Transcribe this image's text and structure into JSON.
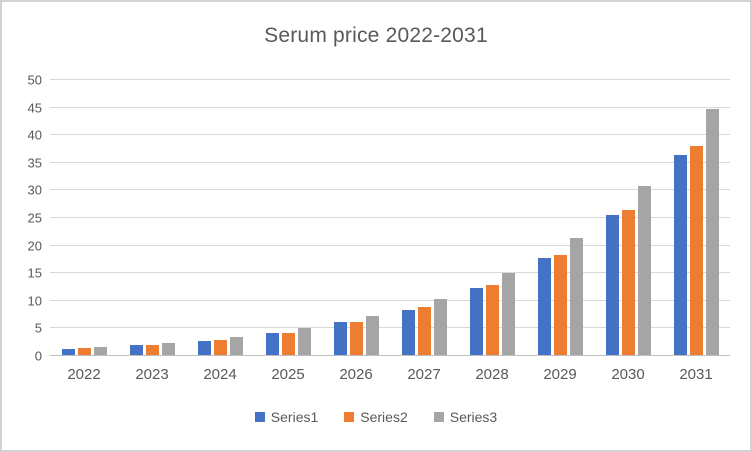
{
  "chart_data": {
    "type": "bar",
    "title": "Serum price 2022-2031",
    "categories": [
      "2022",
      "2023",
      "2024",
      "2025",
      "2026",
      "2027",
      "2028",
      "2029",
      "2030",
      "2031"
    ],
    "series": [
      {
        "name": "Series1",
        "color": "#4472C4",
        "values": [
          1.2,
          2.0,
          2.8,
          4.1,
          6.1,
          8.4,
          12.4,
          17.7,
          25.5,
          36.5
        ]
      },
      {
        "name": "Series2",
        "color": "#ED7D31",
        "values": [
          1.4,
          2.0,
          2.9,
          4.2,
          6.2,
          8.8,
          12.8,
          18.3,
          26.5,
          38.0
        ]
      },
      {
        "name": "Series3",
        "color": "#A5A5A5",
        "values": [
          1.6,
          2.4,
          3.4,
          5.0,
          7.3,
          10.4,
          15.0,
          21.3,
          30.8,
          44.7
        ]
      }
    ],
    "xlabel": "",
    "ylabel": "",
    "ylim": [
      0,
      50
    ],
    "yticks": [
      0,
      5,
      10,
      15,
      20,
      25,
      30,
      35,
      40,
      45,
      50
    ],
    "grid": "horizontal",
    "legend_position": "bottom"
  },
  "theme": {
    "text_color": "#595959",
    "gridline_color": "#D9D9D9",
    "axis_line_color": "#BFBFBF",
    "frame_border_color": "#D2D2D2",
    "background": "#FFFFFF"
  }
}
